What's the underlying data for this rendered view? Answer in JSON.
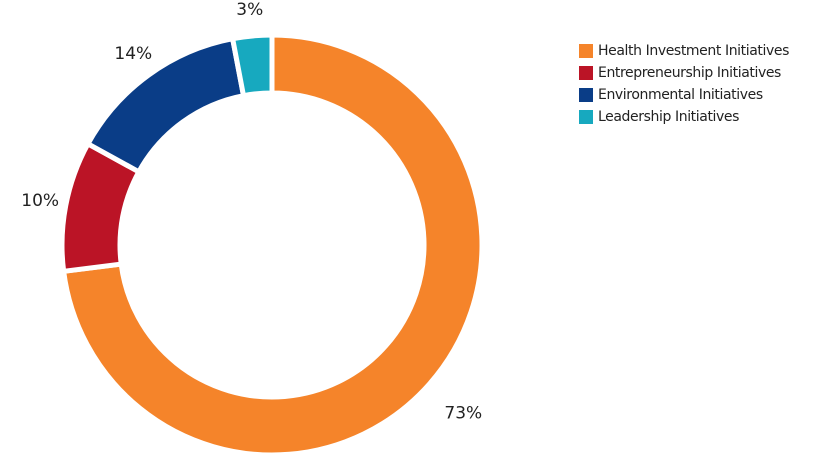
{
  "chart_data": {
    "type": "donut",
    "categories": [
      "Health Investment Initiatives",
      "Entrepreneurship Initiatives",
      "Environmental Initiatives",
      "Leadership Initiatives"
    ],
    "values": [
      73,
      10,
      14,
      3
    ],
    "value_labels": [
      "73%",
      "10%",
      "14%",
      "3%"
    ],
    "colors": [
      "#f5842a",
      "#bb1426",
      "#0a3d87",
      "#17a9bf"
    ],
    "legend": "right"
  }
}
